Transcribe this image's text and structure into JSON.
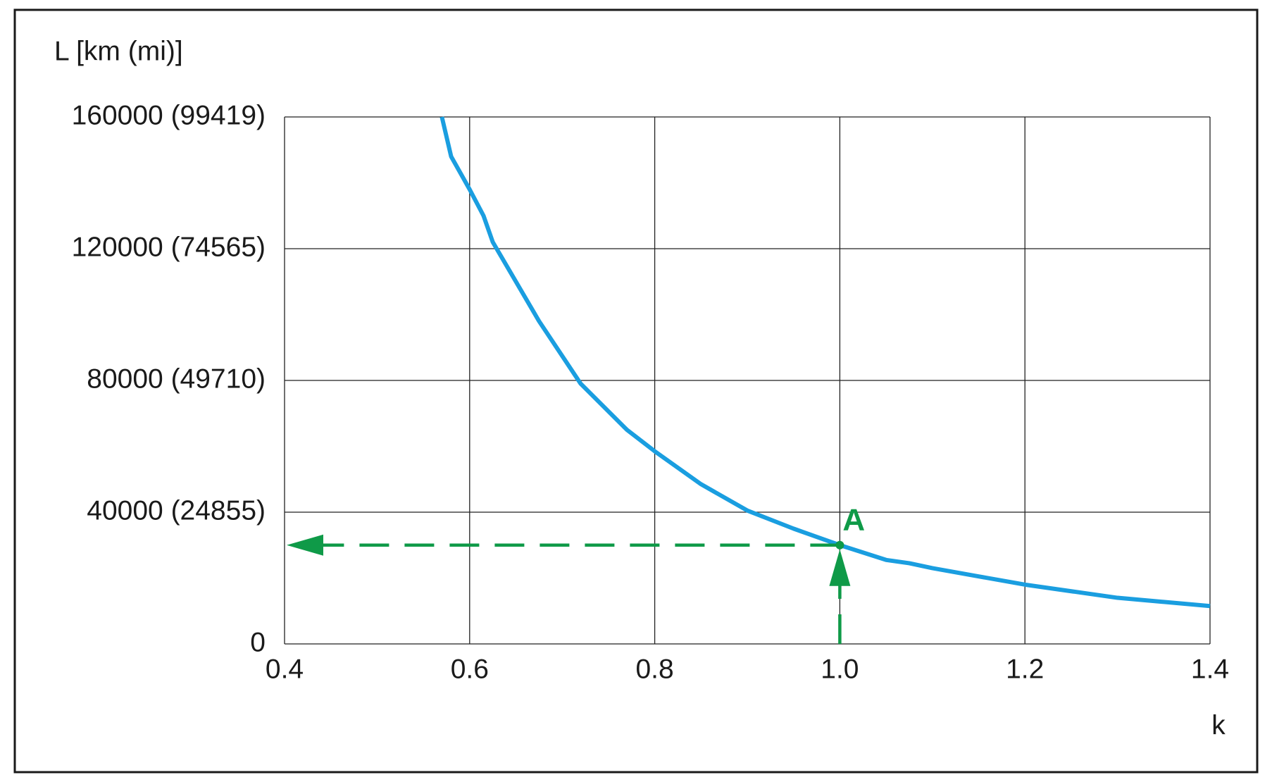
{
  "chart_data": {
    "type": "line",
    "y_label": "L [km (mi)]",
    "x_label": "k",
    "xlim": [
      0.4,
      1.4
    ],
    "xticks": [
      0.4,
      0.6,
      0.8,
      {
        "value": 1,
        "label": "1.0"
      },
      1.2,
      1.4
    ],
    "ylim": [
      0,
      160000
    ],
    "yticks": [
      0,
      {
        "value": 40000,
        "label": "40000 (24855)"
      },
      {
        "value": 80000,
        "label": "80000 (49710)"
      },
      {
        "value": 120000,
        "label": "120000 (74565)"
      },
      {
        "value": 160000,
        "label": "160000 (99419)"
      }
    ],
    "grid": true,
    "x": [
      0.57,
      0.58,
      0.6,
      0.615,
      0.625,
      0.65,
      0.675,
      0.72,
      0.77,
      0.8,
      0.85,
      0.9,
      0.95,
      1.0,
      1.05,
      1.075,
      1.1,
      1.15,
      1.2,
      1.3,
      1.4
    ],
    "series": [
      {
        "color": "#1a9ee0",
        "values": [
          160000,
          148000,
          138000,
          130000,
          122000,
          110000,
          98000,
          79000,
          65000,
          58500,
          48500,
          40500,
          35000,
          30000,
          25500,
          24500,
          23000,
          20500,
          18000,
          14000,
          11500
        ]
      }
    ],
    "annotations": [
      {
        "text": "A",
        "x": 1,
        "y": 30000,
        "color": "#0f9a48"
      }
    ]
  }
}
